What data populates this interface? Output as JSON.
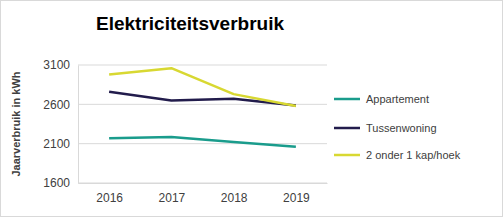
{
  "chart_data": {
    "type": "line",
    "title": "Elektriciteitsverbruik",
    "y_label": "Jaarverbruik in kWh",
    "categories": [
      "2016",
      "2017",
      "2018",
      "2019"
    ],
    "series": [
      {
        "name": "Appartement",
        "color": "#1a9c8c",
        "values": [
          2170,
          2185,
          2120,
          2060
        ]
      },
      {
        "name": "Tussenwoning",
        "color": "#221c4c",
        "values": [
          2760,
          2650,
          2670,
          2585
        ]
      },
      {
        "name": "2 onder 1 kap/hoek",
        "color": "#d8d832",
        "values": [
          2980,
          3060,
          2730,
          2580
        ]
      }
    ],
    "ylim": [
      1600,
      3100
    ],
    "yticks": [
      1600,
      2100,
      2600,
      3100
    ],
    "grid": true,
    "legend": "right"
  }
}
